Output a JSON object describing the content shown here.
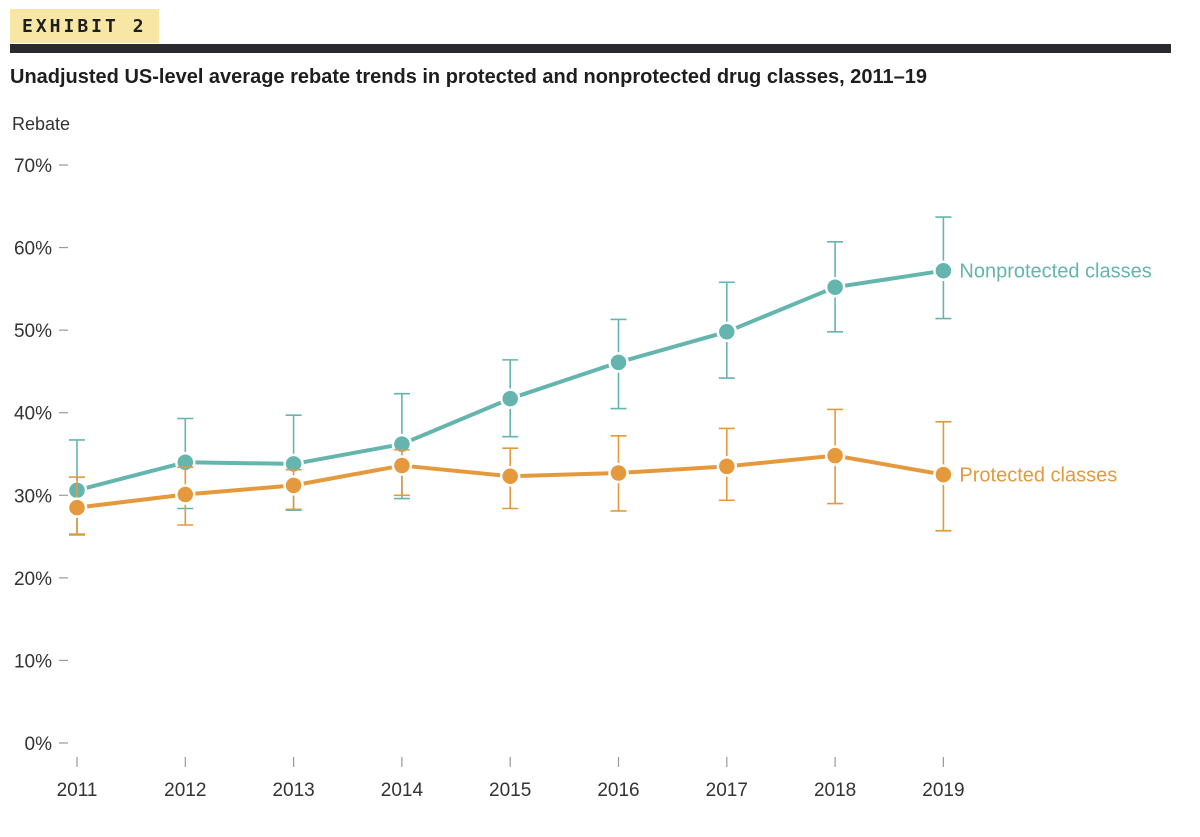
{
  "header": {
    "exhibit_label": "EXHIBIT 2",
    "title": "Unadjusted US-level average rebate trends in protected and nonprotected drug classes, 2011–19"
  },
  "colors": {
    "nonprotected": "#64b5ae",
    "protected": "#e5993d",
    "axis": "#9a9a9a",
    "text": "#333333",
    "tag_bg": "#f8e7a4",
    "rule": "#2b2b2f"
  },
  "chart_data": {
    "type": "line",
    "title": "Unadjusted US-level average rebate trends in protected and nonprotected drug classes, 2011–19",
    "xlabel": "",
    "ylabel": "Rebate",
    "categories": [
      "2011",
      "2012",
      "2013",
      "2014",
      "2015",
      "2016",
      "2017",
      "2018",
      "2019"
    ],
    "ylim": [
      0,
      70
    ],
    "yticks": [
      0,
      10,
      20,
      30,
      40,
      50,
      60,
      70
    ],
    "ytick_labels": [
      "0%",
      "10%",
      "20%",
      "30%",
      "40%",
      "50%",
      "60%",
      "70%"
    ],
    "grid": false,
    "series": [
      {
        "name": "Nonprotected classes",
        "color_key": "nonprotected",
        "values": [
          30.6,
          34.0,
          33.8,
          36.2,
          41.7,
          46.1,
          49.8,
          55.2,
          57.2
        ],
        "lower": [
          25.2,
          28.4,
          28.2,
          29.6,
          37.1,
          40.5,
          44.2,
          49.8,
          51.4
        ],
        "upper": [
          36.7,
          39.3,
          39.7,
          42.3,
          46.4,
          51.3,
          55.8,
          60.7,
          63.7
        ]
      },
      {
        "name": "Protected classes",
        "color_key": "protected",
        "values": [
          28.5,
          30.1,
          31.2,
          33.6,
          32.3,
          32.7,
          33.5,
          34.8,
          32.5
        ],
        "lower": [
          25.3,
          26.4,
          28.3,
          30.0,
          28.4,
          28.1,
          29.4,
          29.0,
          25.7
        ],
        "upper": [
          32.2,
          33.4,
          33.1,
          35.5,
          35.7,
          37.2,
          38.1,
          40.4,
          38.9
        ]
      }
    ]
  }
}
